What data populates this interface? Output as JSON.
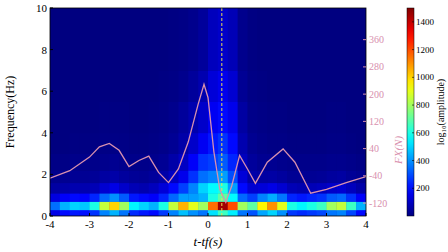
{
  "chart_data": {
    "type": "heatmap",
    "xlabel": "t-tf(s)",
    "ylabel": "Frequency(Hz)",
    "y2label": "FX(N)",
    "xlim": [
      -4,
      4
    ],
    "xticks": [
      -4,
      -3,
      -2,
      -1,
      0,
      1,
      2,
      3,
      4
    ],
    "ylim": [
      0,
      10
    ],
    "yticks": [
      0,
      2,
      4,
      6,
      8,
      10
    ],
    "y2lim": [
      -158,
      453
    ],
    "y2ticks": [
      -120,
      -40,
      40,
      120,
      200,
      280,
      360
    ],
    "x_edges": [
      -4,
      -3.75,
      -3.5,
      -3.25,
      -3,
      -2.75,
      -2.5,
      -2.25,
      -2,
      -1.75,
      -1.5,
      -1.25,
      -1,
      -0.75,
      -0.5,
      -0.25,
      0,
      0.25,
      0.5,
      0.75,
      1,
      1.25,
      1.5,
      1.75,
      2,
      2.25,
      2.5,
      2.75,
      3,
      3.25,
      3.5,
      3.75,
      4
    ],
    "y_edges": [
      0,
      0.3,
      0.7,
      1.1,
      1.6,
      2.2,
      3,
      4,
      5.5,
      7,
      10
    ],
    "cells": [
      [
        150,
        200,
        220,
        210,
        260,
        380,
        450,
        360,
        250,
        220,
        200,
        270,
        380,
        470,
        400,
        360,
        520,
        650,
        540,
        360,
        310,
        430,
        500,
        400,
        270,
        250,
        270,
        290,
        360,
        380,
        290,
        200
      ],
      [
        350,
        450,
        500,
        480,
        600,
        850,
        1000,
        800,
        550,
        500,
        450,
        600,
        850,
        1050,
        900,
        800,
        1150,
        1450,
        1200,
        800,
        700,
        950,
        1100,
        900,
        600,
        550,
        600,
        650,
        800,
        850,
        650,
        450
      ],
      [
        140,
        180,
        200,
        190,
        240,
        340,
        400,
        320,
        220,
        200,
        180,
        240,
        340,
        420,
        420,
        450,
        600,
        700,
        560,
        340,
        280,
        380,
        440,
        360,
        240,
        220,
        240,
        260,
        320,
        340,
        260,
        180
      ],
      [
        50,
        60,
        70,
        70,
        80,
        120,
        150,
        110,
        80,
        70,
        90,
        130,
        200,
        280,
        380,
        500,
        560,
        600,
        420,
        200,
        120,
        130,
        150,
        120,
        80,
        70,
        80,
        90,
        110,
        120,
        90,
        60
      ],
      [
        20,
        25,
        30,
        30,
        35,
        50,
        60,
        45,
        35,
        30,
        40,
        60,
        100,
        160,
        260,
        350,
        380,
        420,
        300,
        130,
        60,
        50,
        55,
        45,
        30,
        30,
        30,
        35,
        45,
        50,
        35,
        25
      ],
      [
        10,
        10,
        15,
        15,
        15,
        20,
        25,
        20,
        15,
        15,
        20,
        30,
        60,
        100,
        180,
        260,
        280,
        320,
        240,
        90,
        40,
        25,
        25,
        20,
        15,
        15,
        15,
        15,
        20,
        20,
        15,
        10
      ],
      [
        0,
        0,
        5,
        5,
        5,
        10,
        10,
        10,
        5,
        5,
        10,
        15,
        30,
        60,
        110,
        170,
        220,
        260,
        200,
        70,
        25,
        15,
        10,
        10,
        5,
        5,
        5,
        5,
        10,
        10,
        5,
        0
      ],
      [
        0,
        0,
        0,
        0,
        0,
        5,
        5,
        5,
        0,
        0,
        5,
        10,
        20,
        40,
        70,
        110,
        170,
        200,
        160,
        50,
        15,
        10,
        5,
        5,
        0,
        0,
        0,
        0,
        5,
        5,
        0,
        0
      ],
      [
        0,
        0,
        0,
        0,
        0,
        0,
        0,
        0,
        0,
        0,
        0,
        5,
        10,
        20,
        40,
        70,
        130,
        160,
        120,
        30,
        10,
        5,
        0,
        0,
        0,
        0,
        0,
        0,
        0,
        0,
        0,
        0
      ],
      [
        0,
        0,
        0,
        0,
        0,
        0,
        0,
        0,
        0,
        0,
        0,
        0,
        5,
        10,
        20,
        40,
        90,
        110,
        80,
        20,
        5,
        0,
        0,
        0,
        0,
        0,
        0,
        0,
        0,
        0,
        0,
        0
      ]
    ],
    "colorbar": {
      "label": "log₁₀(amplitude)",
      "lim": [
        0,
        1500
      ],
      "ticks": [
        200,
        400,
        600,
        800,
        1000,
        1200,
        1400
      ]
    },
    "vline": 0.35,
    "series": [
      {
        "type": "line",
        "axis": "y2",
        "color": "#d890ae",
        "x": [
          -4,
          -3.5,
          -3,
          -2.75,
          -2.5,
          -2.25,
          -2,
          -1.75,
          -1.5,
          -1.25,
          -1,
          -0.75,
          -0.5,
          -0.25,
          -0.1,
          0,
          0.15,
          0.3,
          0.45,
          0.6,
          0.8,
          1,
          1.2,
          1.5,
          1.9,
          2.2,
          2.6,
          3,
          3.5,
          4
        ],
        "values": [
          -47,
          -25,
          15,
          45,
          55,
          35,
          -13,
          5,
          18,
          -30,
          -60,
          -20,
          60,
          170,
          229,
          190,
          30,
          -80,
          -118,
          -70,
          20,
          -20,
          -62,
          0,
          39,
          0,
          -91,
          -80,
          -60,
          -42
        ]
      }
    ]
  }
}
